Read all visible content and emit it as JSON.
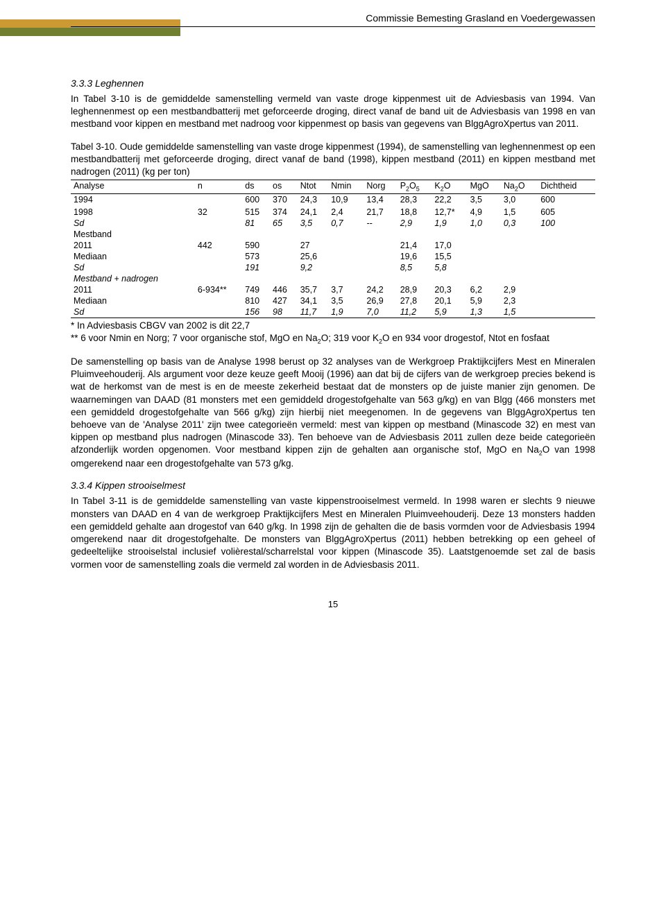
{
  "header": {
    "title": "Commissie Bemesting Grasland en Voedergewassen"
  },
  "section1": {
    "heading": "3.3.3  Leghennen",
    "para1": "In Tabel 3-10 is de gemiddelde samenstelling vermeld van vaste droge kippenmest uit de Adviesbasis van 1994. Van leghennenmest op een mestbandbatterij met geforceerde droging, direct vanaf de band uit de Adviesbasis van 1998 en van mestband voor kippen en mestband met nadroog voor kippenmest op basis van gegevens van BlggAgroXpertus van 2011."
  },
  "table": {
    "caption_lead": "Tabel 3-10.",
    "caption_text": " Oude gemiddelde samenstelling van vaste droge kippenmest (1994), de samenstelling van leghennenmest op een mestbandbatterij met geforceerde droging, direct vanaf de band (1998), kippen mestband (2011) en kippen mestband met nadrogen (2011) (kg per ton)",
    "headers": [
      "Analyse",
      "n",
      "ds",
      "os",
      "Ntot",
      "Nmin",
      "Norg",
      "P2O5",
      "K2O",
      "MgO",
      "Na2O",
      "Dichtheid"
    ],
    "rows": [
      {
        "cells": [
          "1994",
          "",
          "600",
          "370",
          "24,3",
          "10,9",
          "13,4",
          "28,3",
          "22,2",
          "3,5",
          "3,0",
          "600"
        ],
        "classes": "top-border"
      },
      {
        "cells": [
          "",
          "",
          "",
          "",
          "",
          "",
          "",
          "",
          "",
          "",
          "",
          ""
        ],
        "classes": ""
      },
      {
        "cells": [
          "1998",
          "32",
          "515",
          "374",
          "24,1",
          "2,4",
          "21,7",
          "18,8",
          "12,7*",
          "4,9",
          "1,5",
          "605"
        ],
        "classes": ""
      },
      {
        "cells": [
          "Sd",
          "",
          "81",
          "65",
          "3,5",
          "0,7",
          "--",
          "2,9",
          "1,9",
          "1,0",
          "0,3",
          "100"
        ],
        "classes": "italic-row"
      },
      {
        "cells": [
          "Mestband",
          "",
          "",
          "",
          "",
          "",
          "",
          "",
          "",
          "",
          "",
          ""
        ],
        "classes": "section-row normal"
      },
      {
        "cells": [
          "2011",
          "442",
          "590",
          "",
          "27",
          "",
          "",
          "21,4",
          "17,0",
          "",
          "",
          ""
        ],
        "classes": ""
      },
      {
        "cells": [
          "Mediaan",
          "",
          "573",
          "",
          "25,6",
          "",
          "",
          "19,6",
          "15,5",
          "",
          "",
          ""
        ],
        "classes": ""
      },
      {
        "cells": [
          "Sd",
          "",
          "191",
          "",
          "9,2",
          "",
          "",
          "8,5",
          "5,8",
          "",
          "",
          ""
        ],
        "classes": "italic-row"
      },
      {
        "cells": [
          "Mestband + nadrogen",
          "",
          "",
          "",
          "",
          "",
          "",
          "",
          "",
          "",
          "",
          ""
        ],
        "classes": "section-row"
      },
      {
        "cells": [
          "2011",
          "6-934**",
          "749",
          "446",
          "35,7",
          "3,7",
          "24,2",
          "28,9",
          "20,3",
          "6,2",
          "2,9",
          ""
        ],
        "classes": ""
      },
      {
        "cells": [
          "Mediaan",
          "",
          "810",
          "427",
          "34,1",
          "3,5",
          "26,9",
          "27,8",
          "20,1",
          "5,9",
          "2,3",
          ""
        ],
        "classes": ""
      },
      {
        "cells": [
          "Sd",
          "",
          "156",
          "98",
          "11,7",
          "1,9",
          "7,0",
          "11,2",
          "5,9",
          "1,3",
          "1,5",
          ""
        ],
        "classes": "italic-row bottom-border"
      }
    ]
  },
  "footnotes": {
    "line1": "* In Adviesbasis CBGV van 2002 is dit 22,7",
    "line2": "** 6 voor Nmin en Norg; 7 voor organische stof, MgO en Na2O; 319 voor K2O en 934 voor drogestof, Ntot en fosfaat"
  },
  "para2": "De samenstelling op basis van de Analyse 1998 berust op 32 analyses van de Werkgroep Praktijkcijfers Mest en Mineralen Pluimveehouderij. Als argument voor deze keuze geeft Mooij (1996) aan dat bij de cijfers van de werkgroep precies bekend is wat de herkomst van de mest is en de meeste zekerheid bestaat dat de monsters op de juiste manier zijn genomen. De waarnemingen van DAAD (81 monsters met een gemiddeld drogestofgehalte van 563 g/kg) en van Blgg (466 monsters met een gemiddeld drogestofgehalte van 566 g/kg) zijn hierbij niet meegenomen. In de gegevens van BlggAgroXpertus ten behoeve van de 'Analyse 2011' zijn twee categorieën vermeld: mest van kippen op mestband (Minascode 32) en mest van kippen op mestband plus nadrogen (Minascode 33). Ten behoeve van de Adviesbasis 2011 zullen deze beide categorieën afzonderlijk worden opgenomen. Voor mestband kippen zijn de gehalten aan organische stof, MgO en Na2O van 1998 omgerekend naar een drogestofgehalte van 573 g/kg.",
  "section2": {
    "heading": "3.3.4  Kippen strooiselmest",
    "para": "In Tabel 3-11 is de gemiddelde samenstelling van vaste kippenstrooiselmest vermeld. In 1998 waren er slechts 9 nieuwe monsters van DAAD en 4 van de werkgroep Praktijkcijfers Mest en Mineralen Pluimveehouderij. Deze 13 monsters hadden een gemiddeld gehalte aan drogestof van 640 g/kg. In 1998 zijn de gehalten die de basis vormden voor de Adviesbasis 1994 omgerekend naar dit drogestofgehalte. De monsters van BlggAgroXpertus (2011) hebben betrekking op een geheel of gedeeltelijke strooiselstal inclusief volièrestal/scharrelstal voor kippen (Minascode 35). Laatstgenoemde set zal de basis vormen voor de samenstelling zoals die vermeld zal worden in de Adviesbasis 2011."
  },
  "page_number": "15"
}
